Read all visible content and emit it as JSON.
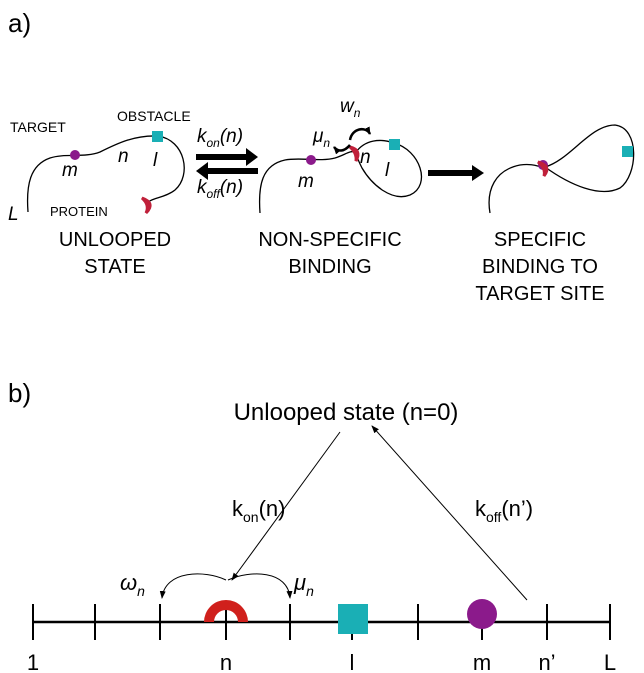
{
  "panel_a": {
    "label": "a)",
    "unlooped": {
      "target": "TARGET",
      "obstacle": "OBSTACLE",
      "protein": "PROTEIN",
      "m": "m",
      "n": "n",
      "l": "l",
      "L": "L",
      "caption": [
        "UNLOOPED",
        "STATE"
      ]
    },
    "k_on": {
      "symbol": "k",
      "sub": "on",
      "arg": "(n)"
    },
    "k_off": {
      "symbol": "k",
      "sub": "off",
      "arg": "(n)"
    },
    "nonspecific": {
      "w": {
        "symbol": "w",
        "sub": "n"
      },
      "mu": {
        "symbol": "μ",
        "sub": "n"
      },
      "m": "m",
      "n": "n",
      "l": "l",
      "caption": [
        "NON-SPECIFIC",
        "BINDING"
      ]
    },
    "specific": {
      "caption": [
        "SPECIFIC",
        "BINDING TO",
        "TARGET SITE"
      ]
    }
  },
  "panel_b": {
    "label": "b)",
    "state": "Unlooped state (n=0)",
    "k_on": {
      "symbol": "k",
      "sub": "on",
      "arg": "(n)"
    },
    "k_off": {
      "symbol": "k",
      "sub": "off",
      "arg": "(n’)"
    },
    "omega": {
      "symbol": "ω",
      "sub": "n"
    },
    "mu": {
      "symbol": "μ",
      "sub": "n"
    },
    "positions": [
      "1",
      "n",
      "l",
      "m",
      "n’",
      "L"
    ]
  }
}
